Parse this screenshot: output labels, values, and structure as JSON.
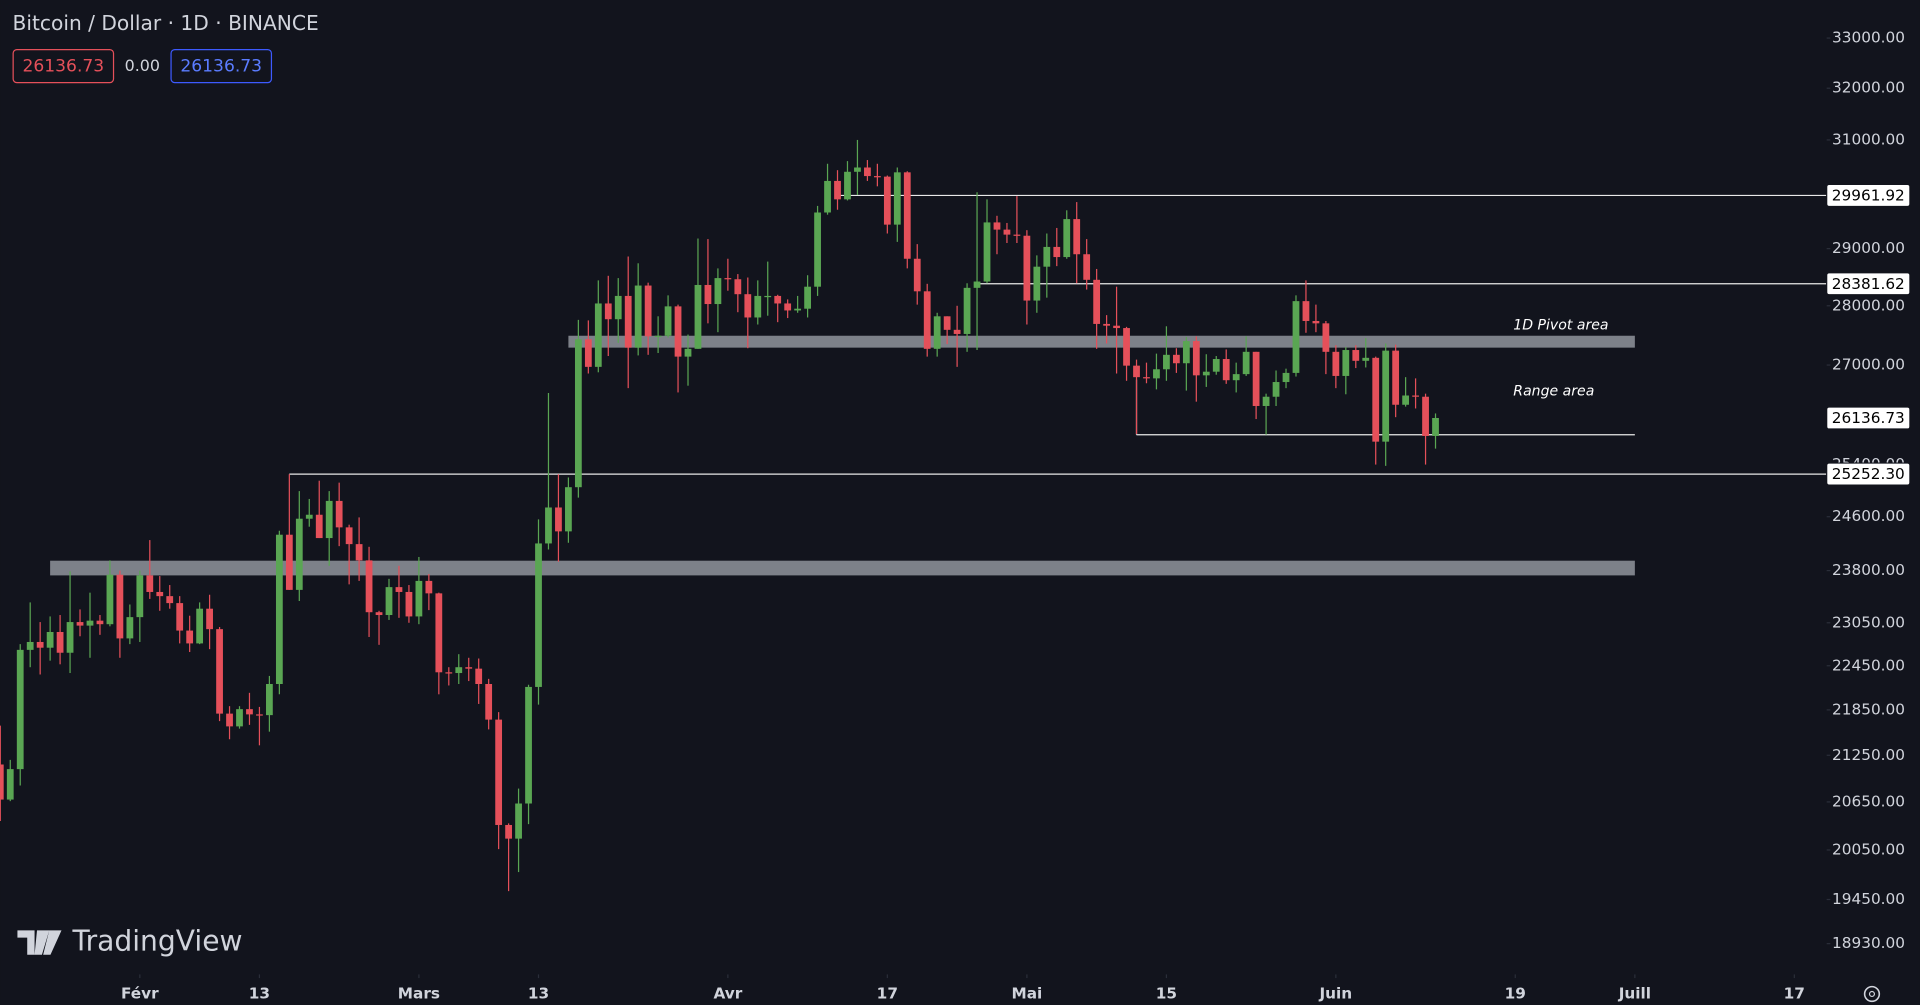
{
  "header": {
    "title": "Bitcoin / Dollar · 1D · BINANCE",
    "sell": "26136.73",
    "spread": "0.00",
    "buy": "26136.73"
  },
  "watermark": "TradingView",
  "chart_data": {
    "type": "candlestick",
    "log_scale": true,
    "up_color": "#5aa653",
    "down_color": "#e5505a",
    "ylim": [
      18590,
      33780
    ],
    "xlim": [
      "01-18",
      "07-20"
    ],
    "yticks": [
      {
        "value": 33000,
        "label": "33000.00"
      },
      {
        "value": 32000,
        "label": "32000.00"
      },
      {
        "value": 31000,
        "label": "31000.00"
      },
      {
        "value": 29000,
        "label": "29000.00"
      },
      {
        "value": 28000,
        "label": "28000.00"
      },
      {
        "value": 27000,
        "label": "27000.00"
      },
      {
        "value": 25400,
        "label": "25400.00"
      },
      {
        "value": 24600,
        "label": "24600.00"
      },
      {
        "value": 23800,
        "label": "23800.00"
      },
      {
        "value": 23050,
        "label": "23050.00"
      },
      {
        "value": 22450,
        "label": "22450.00"
      },
      {
        "value": 21850,
        "label": "21850.00"
      },
      {
        "value": 21250,
        "label": "21250.00"
      },
      {
        "value": 20650,
        "label": "20650.00"
      },
      {
        "value": 20050,
        "label": "20050.00"
      },
      {
        "value": 19450,
        "label": "19450.00"
      },
      {
        "value": 18930,
        "label": "18930.00"
      }
    ],
    "xticks": [
      {
        "value": "02-01",
        "label": "Févr"
      },
      {
        "value": "02-13",
        "label": "13"
      },
      {
        "value": "03-01",
        "label": "Mars"
      },
      {
        "value": "03-13",
        "label": "13"
      },
      {
        "value": "04-01",
        "label": "Avr"
      },
      {
        "value": "04-17",
        "label": "17"
      },
      {
        "value": "05-01",
        "label": "Mai"
      },
      {
        "value": "05-15",
        "label": "15"
      },
      {
        "value": "06-01",
        "label": "Juin"
      },
      {
        "value": "06-19",
        "label": "19"
      },
      {
        "value": "07-01",
        "label": "Juill"
      },
      {
        "value": "07-17",
        "label": "17"
      }
    ],
    "levels": [
      {
        "value": 29961.92,
        "label": "29961.92",
        "from": "04-12"
      },
      {
        "value": 28381.62,
        "label": "28381.62",
        "from": "04-26"
      },
      {
        "value": 25252.3,
        "label": "25252.30",
        "from": "02-16"
      }
    ],
    "range_line": {
      "value": 25870,
      "from": "05-12",
      "to": "07-01"
    },
    "zones": [
      {
        "low": 27290,
        "high": 27490,
        "from": "03-16",
        "to": "07-01"
      },
      {
        "low": 23730,
        "high": 23945,
        "from": "01-23",
        "to": "07-01"
      }
    ],
    "annotations": [
      "1D Pivot area",
      "Range area"
    ],
    "x": [
      "01-18",
      "01-19",
      "01-20",
      "01-21",
      "01-22",
      "01-23",
      "01-24",
      "01-25",
      "01-26",
      "01-27",
      "01-28",
      "01-29",
      "01-30",
      "01-31",
      "02-01",
      "02-02",
      "02-03",
      "02-04",
      "02-05",
      "02-06",
      "02-07",
      "02-08",
      "02-09",
      "02-10",
      "02-11",
      "02-12",
      "02-13",
      "02-14",
      "02-15",
      "02-16",
      "02-17",
      "02-18",
      "02-19",
      "02-20",
      "02-21",
      "02-22",
      "02-23",
      "02-24",
      "02-25",
      "02-26",
      "02-27",
      "02-28",
      "03-01",
      "03-02",
      "03-03",
      "03-04",
      "03-05",
      "03-06",
      "03-07",
      "03-08",
      "03-09",
      "03-10",
      "03-11",
      "03-12",
      "03-13",
      "03-14",
      "03-15",
      "03-16",
      "03-17",
      "03-18",
      "03-19",
      "03-20",
      "03-21",
      "03-22",
      "03-23",
      "03-24",
      "03-25",
      "03-26",
      "03-27",
      "03-28",
      "03-29",
      "03-30",
      "03-31",
      "04-01",
      "04-02",
      "04-03",
      "04-04",
      "04-05",
      "04-06",
      "04-07",
      "04-08",
      "04-09",
      "04-10",
      "04-11",
      "04-12",
      "04-13",
      "04-14",
      "04-15",
      "04-16",
      "04-17",
      "04-18",
      "04-19",
      "04-20",
      "04-21",
      "04-22",
      "04-23",
      "04-24",
      "04-25",
      "04-26",
      "04-27",
      "04-28",
      "04-29",
      "04-30",
      "05-01",
      "05-02",
      "05-03",
      "05-04",
      "05-05",
      "05-06",
      "05-07",
      "05-08",
      "05-09",
      "05-10",
      "05-11",
      "05-12",
      "05-13",
      "05-14",
      "05-15",
      "05-16",
      "05-17",
      "05-18",
      "05-19",
      "05-20",
      "05-21",
      "05-22",
      "05-23",
      "05-24",
      "05-25",
      "05-26",
      "05-27",
      "05-28",
      "05-29",
      "05-30",
      "05-31",
      "06-01",
      "06-02",
      "06-03",
      "06-04",
      "06-05",
      "06-06",
      "06-07",
      "06-08",
      "06-09",
      "06-10",
      "06-11"
    ],
    "ohlc": [
      [
        21130,
        21640,
        20410,
        20680
      ],
      [
        20680,
        21190,
        20660,
        21070
      ],
      [
        21070,
        22750,
        20860,
        22670
      ],
      [
        22670,
        23340,
        22430,
        22780
      ],
      [
        22780,
        23060,
        22330,
        22700
      ],
      [
        22700,
        23140,
        22520,
        22920
      ],
      [
        22920,
        23160,
        22470,
        22630
      ],
      [
        22630,
        23790,
        22350,
        23060
      ],
      [
        23060,
        23240,
        22860,
        23010
      ],
      [
        23010,
        23480,
        22560,
        23080
      ],
      [
        23080,
        23160,
        22880,
        23030
      ],
      [
        23030,
        23950,
        23000,
        23740
      ],
      [
        23740,
        23800,
        22560,
        22830
      ],
      [
        22830,
        23310,
        22750,
        23130
      ],
      [
        23130,
        23800,
        22780,
        23730
      ],
      [
        23730,
        24250,
        23390,
        23490
      ],
      [
        23490,
        23720,
        23220,
        23430
      ],
      [
        23430,
        23590,
        23250,
        23330
      ],
      [
        23330,
        23430,
        22760,
        22940
      ],
      [
        22940,
        23150,
        22640,
        22760
      ],
      [
        22760,
        23340,
        22750,
        23250
      ],
      [
        23250,
        23450,
        22680,
        22960
      ],
      [
        22960,
        22990,
        21700,
        21800
      ],
      [
        21800,
        21900,
        21460,
        21630
      ],
      [
        21630,
        21900,
        21600,
        21860
      ],
      [
        21860,
        22080,
        21650,
        21790
      ],
      [
        21790,
        21890,
        21380,
        21780
      ],
      [
        21780,
        22310,
        21560,
        22200
      ],
      [
        22200,
        24390,
        22060,
        24330
      ],
      [
        24330,
        25250,
        23520,
        23520
      ],
      [
        23520,
        24990,
        23360,
        24570
      ],
      [
        24570,
        24870,
        24450,
        24630
      ],
      [
        24630,
        25150,
        24280,
        24280
      ],
      [
        24280,
        24990,
        23870,
        24840
      ],
      [
        24840,
        25120,
        24160,
        24440
      ],
      [
        24440,
        24480,
        23600,
        24190
      ],
      [
        24190,
        24590,
        23650,
        23950
      ],
      [
        23950,
        24150,
        22850,
        23200
      ],
      [
        23200,
        23220,
        22740,
        23160
      ],
      [
        23160,
        23680,
        23090,
        23560
      ],
      [
        23560,
        23870,
        23120,
        23490
      ],
      [
        23490,
        23590,
        23050,
        23140
      ],
      [
        23140,
        24000,
        23030,
        23650
      ],
      [
        23650,
        23750,
        23230,
        23470
      ],
      [
        23470,
        23480,
        22060,
        22360
      ],
      [
        22360,
        22430,
        22180,
        22350
      ],
      [
        22350,
        22610,
        22200,
        22430
      ],
      [
        22430,
        22560,
        22240,
        22410
      ],
      [
        22410,
        22550,
        21930,
        22200
      ],
      [
        22200,
        22270,
        21590,
        21720
      ],
      [
        21720,
        21820,
        20060,
        20360
      ],
      [
        20360,
        20380,
        19550,
        20190
      ],
      [
        20190,
        20820,
        19780,
        20630
      ],
      [
        20630,
        22190,
        20370,
        22160
      ],
      [
        22160,
        24560,
        21920,
        24200
      ],
      [
        24200,
        26540,
        24110,
        24740
      ],
      [
        24740,
        25250,
        23930,
        24380
      ],
      [
        24380,
        25200,
        24210,
        25050
      ],
      [
        25050,
        27760,
        24890,
        27430
      ],
      [
        27430,
        27750,
        26860,
        26970
      ],
      [
        26970,
        28440,
        26880,
        28040
      ],
      [
        28040,
        28520,
        27150,
        27770
      ],
      [
        27770,
        28480,
        27370,
        28170
      ],
      [
        28170,
        28860,
        26620,
        27290
      ],
      [
        27290,
        28740,
        27160,
        28350
      ],
      [
        28350,
        28400,
        27170,
        27480
      ],
      [
        27480,
        27820,
        27200,
        27490
      ],
      [
        27490,
        28180,
        27460,
        27990
      ],
      [
        27990,
        28020,
        26550,
        27140
      ],
      [
        27140,
        27510,
        26660,
        27270
      ],
      [
        27270,
        29180,
        27270,
        28360
      ],
      [
        28360,
        29170,
        27700,
        28030
      ],
      [
        28030,
        28650,
        27550,
        28480
      ],
      [
        28480,
        28820,
        28260,
        28460
      ],
      [
        28460,
        28550,
        27890,
        28200
      ],
      [
        28200,
        28490,
        27280,
        27800
      ],
      [
        27800,
        28440,
        27680,
        28170
      ],
      [
        28170,
        28770,
        27830,
        28170
      ],
      [
        28170,
        28190,
        27720,
        28040
      ],
      [
        28040,
        28110,
        27790,
        27920
      ],
      [
        27920,
        28170,
        27880,
        27950
      ],
      [
        27950,
        28530,
        27800,
        28330
      ],
      [
        28330,
        29770,
        28170,
        29650
      ],
      [
        29650,
        30550,
        29610,
        30230
      ],
      [
        30230,
        30430,
        29700,
        29890
      ],
      [
        29890,
        30600,
        29870,
        30400
      ],
      [
        30400,
        31000,
        29970,
        30480
      ],
      [
        30480,
        30620,
        30230,
        30320
      ],
      [
        30320,
        30550,
        30130,
        30310
      ],
      [
        30310,
        30330,
        29270,
        29430
      ],
      [
        29430,
        30480,
        29120,
        30390
      ],
      [
        30390,
        30410,
        28650,
        28820
      ],
      [
        28820,
        29080,
        28020,
        28250
      ],
      [
        28250,
        28380,
        27140,
        27270
      ],
      [
        27270,
        27880,
        27140,
        27820
      ],
      [
        27820,
        27820,
        27350,
        27590
      ],
      [
        27590,
        28000,
        26970,
        27520
      ],
      [
        27520,
        28390,
        27220,
        28310
      ],
      [
        28310,
        30020,
        27250,
        28420
      ],
      [
        28420,
        29890,
        28390,
        29470
      ],
      [
        29470,
        29590,
        28900,
        29340
      ],
      [
        29340,
        29460,
        29100,
        29250
      ],
      [
        29250,
        29950,
        29100,
        29230
      ],
      [
        29230,
        29330,
        27680,
        28090
      ],
      [
        28090,
        28880,
        27880,
        28680
      ],
      [
        28680,
        29270,
        28140,
        29030
      ],
      [
        29030,
        29370,
        28690,
        28850
      ],
      [
        28850,
        29690,
        28820,
        29530
      ],
      [
        29530,
        29840,
        28390,
        28900
      ],
      [
        28900,
        29170,
        28280,
        28450
      ],
      [
        28450,
        28640,
        27270,
        27690
      ],
      [
        27690,
        27840,
        27360,
        27660
      ],
      [
        27660,
        28330,
        26860,
        27620
      ],
      [
        27620,
        27640,
        26740,
        26990
      ],
      [
        26990,
        27090,
        25880,
        26800
      ],
      [
        26800,
        27040,
        26700,
        26780
      ],
      [
        26780,
        27190,
        26600,
        26930
      ],
      [
        26930,
        27650,
        26740,
        27170
      ],
      [
        27170,
        27280,
        26870,
        27030
      ],
      [
        27030,
        27470,
        26580,
        27400
      ],
      [
        27400,
        27480,
        26400,
        26830
      ],
      [
        26830,
        27180,
        26640,
        26890
      ],
      [
        26890,
        27150,
        26840,
        27100
      ],
      [
        27100,
        27260,
        26690,
        26750
      ],
      [
        26750,
        27040,
        26550,
        26850
      ],
      [
        26850,
        27480,
        26820,
        27220
      ],
      [
        27220,
        27220,
        26120,
        26330
      ],
      [
        26330,
        26530,
        25870,
        26480
      ],
      [
        26480,
        26910,
        26330,
        26720
      ],
      [
        26720,
        26940,
        26620,
        26870
      ],
      [
        26870,
        28180,
        26810,
        28080
      ],
      [
        28080,
        28440,
        27540,
        27740
      ],
      [
        27740,
        28020,
        27550,
        27700
      ],
      [
        27700,
        27740,
        26850,
        27220
      ],
      [
        27220,
        27330,
        26620,
        26820
      ],
      [
        26820,
        27300,
        26520,
        27250
      ],
      [
        27250,
        27330,
        26950,
        27070
      ],
      [
        27070,
        27450,
        26960,
        27120
      ],
      [
        27120,
        27140,
        25400,
        25760
      ],
      [
        25760,
        27360,
        25380,
        27240
      ],
      [
        27240,
        27340,
        26150,
        26350
      ],
      [
        26350,
        26800,
        26320,
        26500
      ],
      [
        26500,
        26780,
        26290,
        26480
      ],
      [
        26480,
        26530,
        25400,
        25850
      ],
      [
        25850,
        26210,
        25650,
        26136.73
      ]
    ]
  }
}
